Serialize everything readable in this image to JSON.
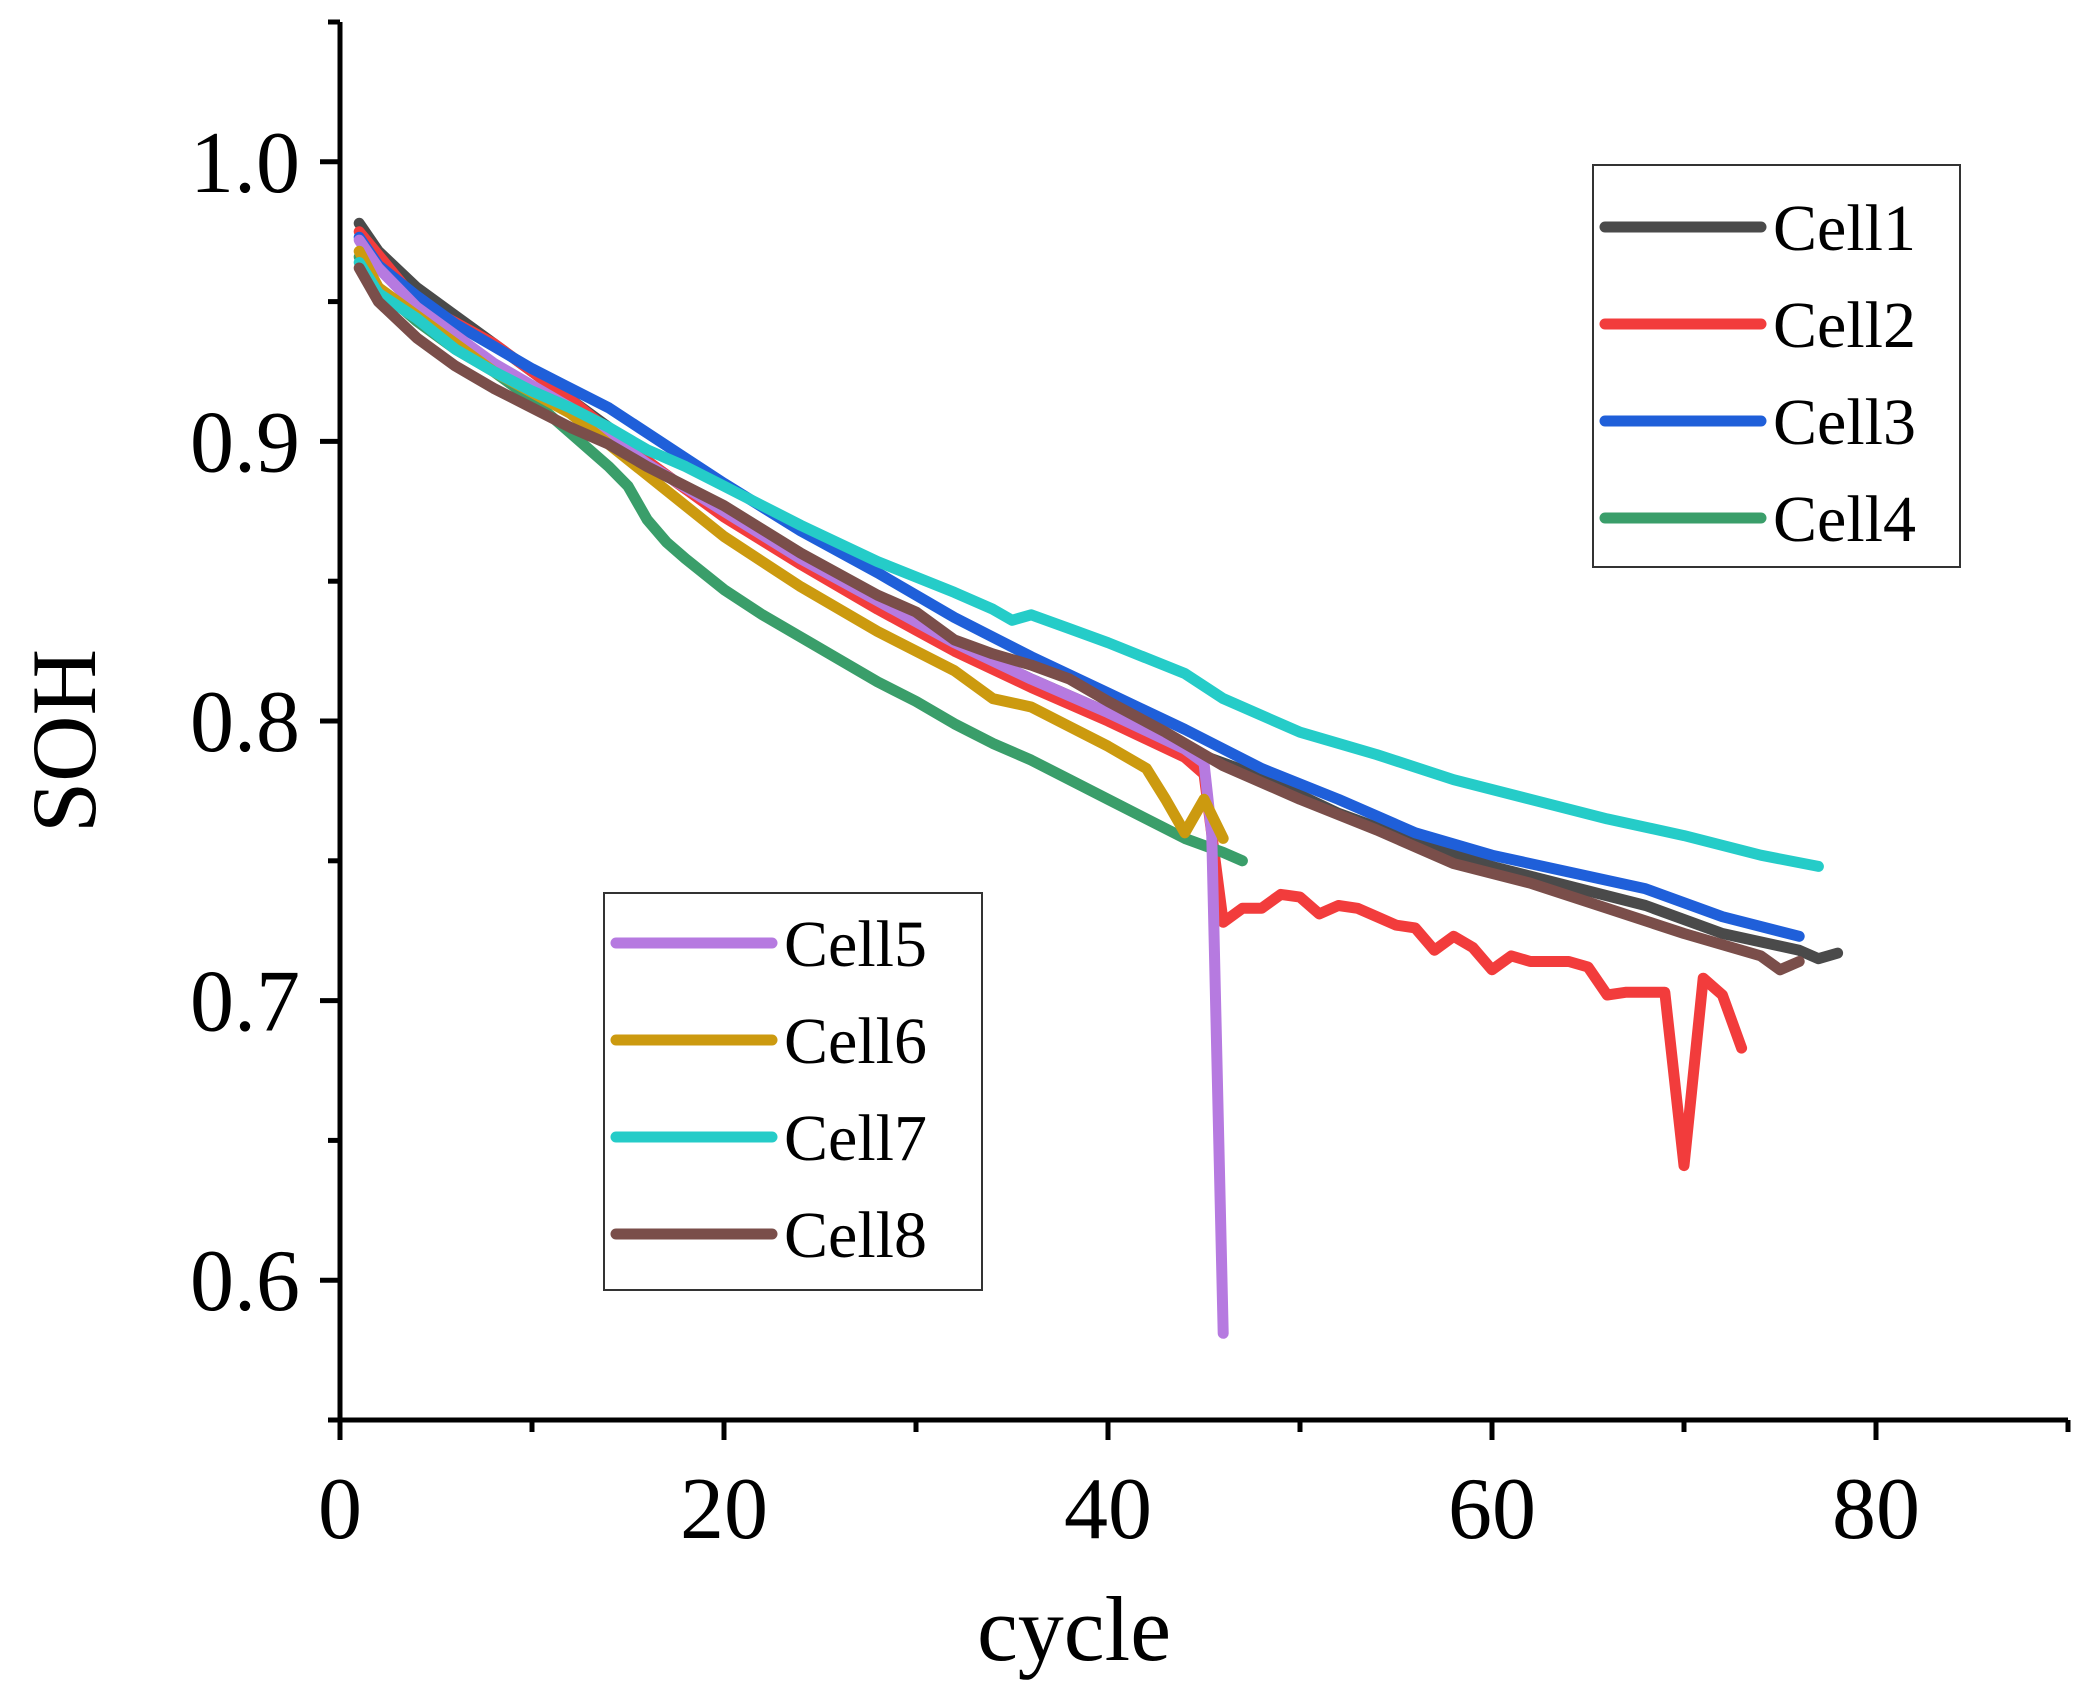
{
  "chart_data": {
    "type": "line",
    "title": "",
    "xlabel": "cycle",
    "ylabel": "SOH",
    "xlim": [
      0,
      90
    ],
    "ylim": [
      0.55,
      1.05
    ],
    "xticks": [
      0,
      20,
      40,
      60,
      80
    ],
    "xtick_labels": [
      "0",
      "20",
      "40",
      "60",
      "80"
    ],
    "xminor": [
      10,
      30,
      50,
      70,
      90
    ],
    "yticks": [
      0.6,
      0.7,
      0.8,
      0.9,
      1.0
    ],
    "ytick_labels": [
      "0.6",
      "0.7",
      "0.8",
      "0.9",
      "1.0"
    ],
    "yminor": [
      0.55,
      0.65,
      0.75,
      0.85,
      0.95,
      1.05
    ],
    "grid": false,
    "legends": [
      {
        "placement": "top-right",
        "entries": [
          "Cell1",
          "Cell2",
          "Cell3",
          "Cell4"
        ]
      },
      {
        "placement": "center-left",
        "entries": [
          "Cell5",
          "Cell6",
          "Cell7",
          "Cell8"
        ]
      }
    ],
    "series": [
      {
        "name": "Cell1",
        "color": "#4a4a4a",
        "x": [
          1,
          2,
          4,
          6,
          8,
          10,
          12,
          14,
          16,
          18,
          20,
          24,
          28,
          32,
          36,
          40,
          44,
          48,
          52,
          56,
          60,
          64,
          68,
          72,
          76,
          77,
          78
        ],
        "y": [
          0.978,
          0.968,
          0.955,
          0.945,
          0.935,
          0.925,
          0.915,
          0.905,
          0.893,
          0.883,
          0.874,
          0.858,
          0.843,
          0.828,
          0.815,
          0.803,
          0.79,
          0.78,
          0.767,
          0.757,
          0.748,
          0.741,
          0.734,
          0.724,
          0.718,
          0.715,
          0.717
        ]
      },
      {
        "name": "Cell2",
        "color": "#f23c3c",
        "x": [
          1,
          4,
          8,
          12,
          16,
          20,
          24,
          28,
          32,
          36,
          40,
          44,
          45,
          46,
          47,
          48,
          49,
          50,
          51,
          52,
          53,
          54,
          55,
          56,
          57,
          58,
          59,
          60,
          61,
          62,
          63,
          64,
          65,
          66,
          67,
          68,
          69,
          70,
          71,
          72,
          73
        ],
        "y": [
          0.975,
          0.95,
          0.935,
          0.915,
          0.893,
          0.873,
          0.856,
          0.84,
          0.825,
          0.812,
          0.8,
          0.787,
          0.781,
          0.728,
          0.733,
          0.733,
          0.738,
          0.737,
          0.731,
          0.734,
          0.733,
          0.73,
          0.727,
          0.726,
          0.718,
          0.723,
          0.719,
          0.711,
          0.716,
          0.714,
          0.714,
          0.714,
          0.712,
          0.702,
          0.703,
          0.703,
          0.703,
          0.641,
          0.708,
          0.702,
          0.683
        ]
      },
      {
        "name": "Cell3",
        "color": "#1f5fd9",
        "x": [
          1,
          2,
          4,
          6,
          8,
          10,
          12,
          14,
          16,
          18,
          20,
          24,
          28,
          32,
          36,
          40,
          44,
          48,
          52,
          56,
          60,
          64,
          68,
          72,
          76
        ],
        "y": [
          0.973,
          0.963,
          0.952,
          0.942,
          0.934,
          0.926,
          0.919,
          0.912,
          0.903,
          0.894,
          0.885,
          0.868,
          0.853,
          0.837,
          0.823,
          0.81,
          0.797,
          0.783,
          0.772,
          0.76,
          0.752,
          0.746,
          0.74,
          0.73,
          0.723
        ]
      },
      {
        "name": "Cell4",
        "color": "#3a9e6a",
        "x": [
          1,
          2,
          4,
          6,
          8,
          10,
          12,
          14,
          15,
          16,
          17,
          18,
          20,
          22,
          24,
          26,
          28,
          30,
          32,
          34,
          36,
          38,
          40,
          42,
          44,
          46,
          47
        ],
        "y": [
          0.966,
          0.955,
          0.943,
          0.933,
          0.925,
          0.915,
          0.903,
          0.891,
          0.884,
          0.872,
          0.864,
          0.858,
          0.847,
          0.838,
          0.83,
          0.822,
          0.814,
          0.807,
          0.799,
          0.792,
          0.786,
          0.779,
          0.772,
          0.765,
          0.758,
          0.753,
          0.75
        ]
      },
      {
        "name": "Cell5",
        "color": "#b67ae0",
        "x": [
          1,
          2,
          4,
          8,
          12,
          16,
          20,
          24,
          28,
          32,
          36,
          40,
          44,
          45,
          45.4,
          46
        ],
        "y": [
          0.972,
          0.962,
          0.948,
          0.928,
          0.912,
          0.892,
          0.875,
          0.858,
          0.843,
          0.828,
          0.815,
          0.803,
          0.79,
          0.785,
          0.76,
          0.581
        ]
      },
      {
        "name": "Cell6",
        "color": "#cc9a0f",
        "x": [
          1,
          2,
          4,
          8,
          12,
          16,
          20,
          24,
          28,
          32,
          34,
          36,
          38,
          40,
          42,
          43,
          44,
          45,
          46
        ],
        "y": [
          0.968,
          0.955,
          0.945,
          0.925,
          0.91,
          0.888,
          0.866,
          0.848,
          0.832,
          0.818,
          0.808,
          0.805,
          0.798,
          0.791,
          0.783,
          0.772,
          0.76,
          0.772,
          0.758
        ]
      },
      {
        "name": "Cell7",
        "color": "#25ccc8",
        "x": [
          1,
          2,
          4,
          6,
          8,
          10,
          12,
          14,
          16,
          18,
          20,
          24,
          28,
          32,
          34,
          35,
          36,
          38,
          40,
          44,
          46,
          50,
          54,
          58,
          62,
          66,
          70,
          74,
          77
        ],
        "y": [
          0.964,
          0.953,
          0.944,
          0.933,
          0.925,
          0.918,
          0.912,
          0.905,
          0.897,
          0.891,
          0.884,
          0.87,
          0.857,
          0.846,
          0.84,
          0.836,
          0.838,
          0.833,
          0.828,
          0.817,
          0.808,
          0.796,
          0.788,
          0.779,
          0.772,
          0.765,
          0.759,
          0.752,
          0.748
        ]
      },
      {
        "name": "Cell8",
        "color": "#7a4e4a",
        "x": [
          1,
          2,
          4,
          6,
          8,
          10,
          12,
          14,
          16,
          18,
          20,
          24,
          28,
          30,
          32,
          34,
          36,
          38,
          40,
          43,
          46,
          50,
          54,
          58,
          62,
          66,
          70,
          74,
          75,
          76
        ],
        "y": [
          0.962,
          0.95,
          0.937,
          0.927,
          0.919,
          0.912,
          0.905,
          0.899,
          0.891,
          0.884,
          0.877,
          0.86,
          0.845,
          0.839,
          0.829,
          0.824,
          0.82,
          0.815,
          0.807,
          0.796,
          0.784,
          0.772,
          0.761,
          0.749,
          0.742,
          0.733,
          0.724,
          0.716,
          0.711,
          0.714
        ]
      }
    ]
  }
}
